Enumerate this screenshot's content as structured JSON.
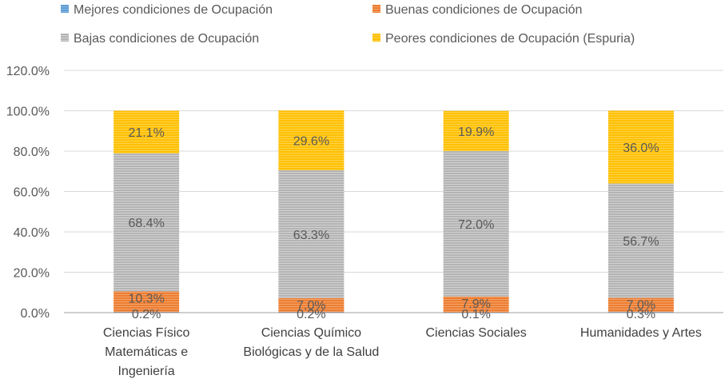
{
  "chart_data": {
    "type": "bar",
    "stacked": true,
    "title": "",
    "xlabel": "",
    "ylabel": "",
    "ylim": [
      0,
      120
    ],
    "y_ticks": [
      "0.0%",
      "20.0%",
      "40.0%",
      "60.0%",
      "80.0%",
      "100.0%",
      "120.0%"
    ],
    "y_tick_values": [
      0,
      20,
      40,
      60,
      80,
      100,
      120
    ],
    "legend_position": "top",
    "categories": [
      [
        "Ciencias Físico",
        "Matemáticas e",
        "Ingeniería"
      ],
      [
        "Ciencias Químico",
        "Biológicas y de la Salud"
      ],
      [
        "Ciencias Sociales"
      ],
      [
        "Humanidades y Artes"
      ]
    ],
    "series": [
      {
        "name": "Mejores condiciones de Ocupación",
        "color": "#5b9bd5",
        "values": [
          0.2,
          0.2,
          0.1,
          0.3
        ],
        "labels": [
          "0.2%",
          "0.2%",
          "0.1%",
          "0.3%"
        ]
      },
      {
        "name": "Buenas condiciones de Ocupación",
        "color": "#ed7d31",
        "values": [
          10.3,
          7.0,
          7.9,
          7.0
        ],
        "labels": [
          "10.3%",
          "7.0%",
          "7.9%",
          "7.0%"
        ]
      },
      {
        "name": "Bajas condiciones de Ocupación",
        "color": "#a5a5a5",
        "values": [
          68.4,
          63.3,
          72.0,
          56.7
        ],
        "labels": [
          "68.4%",
          "63.3%",
          "72.0%",
          "56.7%"
        ]
      },
      {
        "name": "Peores condiciones de Ocupación (Espuria)",
        "color": "#ffc000",
        "values": [
          21.1,
          29.6,
          19.9,
          36.0
        ],
        "labels": [
          "21.1%",
          "29.6%",
          "19.9%",
          "36.0%"
        ]
      }
    ]
  }
}
